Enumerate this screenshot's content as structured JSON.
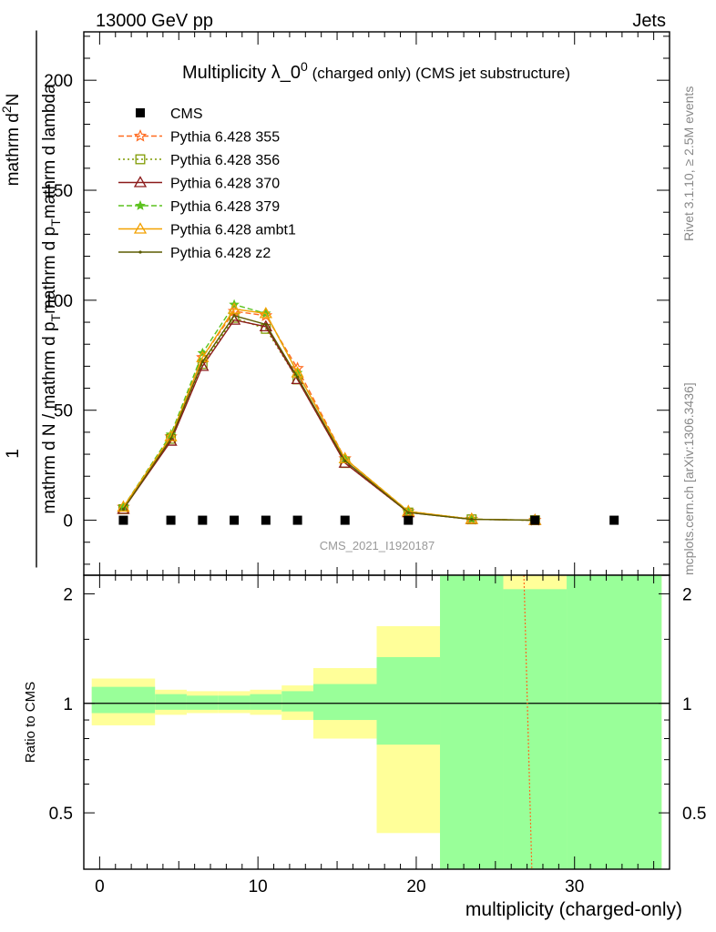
{
  "header": {
    "left": "13000 GeV pp",
    "right": "Jets"
  },
  "side_labels": {
    "rivet": "Rivet 3.1.10, ≥ 2.5M events",
    "mcplots": "mcplots.cern.ch [arXiv:1306.3436]"
  },
  "watermark": "CMS_2021_I1920187",
  "colors": {
    "cms": "#000000",
    "p355": "#ff6a1f",
    "p356": "#7f9a00",
    "p370": "#8b1a1a",
    "p379": "#5cc21e",
    "ambt1": "#f2a100",
    "z2": "#5b5b00",
    "band_yellow": "#ffff99",
    "band_green": "#99ff99"
  },
  "chart_data": [
    {
      "type": "line",
      "title_main": "Multiplicity λ_0",
      "title_sup": "0",
      "title_note": "(charged only) (CMS jet substructure)",
      "ylabel_main": "mathrm d N / mathrm d p",
      "ylabel_sub": "T",
      "ylabel_tail": "mathrm d p",
      "ylabel_tail_sub": "T",
      "ylabel_end": "mathrm d lambda",
      "ylabel_num": "mathrm d",
      "ylabel_num_sup": "2",
      "ylabel_num_end": "N",
      "ylabel_one": "1",
      "xlim": [
        -1,
        36
      ],
      "ylim": [
        -25,
        222
      ],
      "yticks": [
        0,
        50,
        100,
        150,
        200
      ],
      "yticklabels": [
        "0",
        "50",
        "100",
        "150",
        "200"
      ],
      "legend_position": "top-left",
      "x": [
        1.5,
        4.5,
        6.5,
        8.5,
        10.5,
        12.5,
        15.5,
        19.5,
        23.5,
        27.5
      ],
      "cms": {
        "name": "CMS",
        "x": [
          1.5,
          4.5,
          6.5,
          8.5,
          10.5,
          12.5,
          15.5,
          19.5,
          27.5,
          32.5
        ],
        "y": [
          0,
          0,
          0,
          0,
          0,
          0,
          0,
          0,
          0,
          0
        ]
      },
      "series": [
        {
          "key": "p355",
          "name": "Pythia 6.428 355",
          "marker": "star",
          "dash": "6,3",
          "y": [
            6,
            38,
            74,
            95,
            93,
            69,
            28,
            4,
            0.5,
            0
          ]
        },
        {
          "key": "p356",
          "name": "Pythia 6.428 356",
          "marker": "square",
          "dash": "2,3",
          "y": [
            5,
            37,
            71,
            92,
            87,
            64,
            26,
            3.5,
            0.4,
            0
          ]
        },
        {
          "key": "p370",
          "name": "Pythia 6.428 370",
          "marker": "triangle",
          "dash": "",
          "y": [
            5,
            36,
            70,
            91,
            88,
            64,
            26,
            3.5,
            0.4,
            0
          ]
        },
        {
          "key": "p379",
          "name": "Pythia 6.428 379",
          "marker": "star-small",
          "dash": "6,3",
          "y": [
            6,
            39,
            76,
            98,
            94,
            67,
            28,
            4,
            0.5,
            0
          ]
        },
        {
          "key": "ambt1",
          "name": "Pythia 6.428 ambt1",
          "marker": "triangle",
          "dash": "",
          "y": [
            6,
            38,
            74,
            96,
            94,
            67,
            28,
            4,
            0.5,
            0
          ]
        },
        {
          "key": "z2",
          "name": "Pythia 6.428 z2",
          "marker": "dot",
          "dash": "",
          "y": [
            5,
            37,
            72,
            93,
            89,
            65,
            27,
            3.5,
            0.4,
            0
          ]
        }
      ]
    },
    {
      "type": "area",
      "ylabel": "Ratio to CMS",
      "xlabel": "multiplicity (charged-only)",
      "xlim": [
        -1,
        36
      ],
      "ylim": [
        0.35,
        2.25
      ],
      "xticks": [
        0,
        10,
        20,
        30
      ],
      "xticklabels": [
        "0",
        "10",
        "20",
        "30"
      ],
      "yticks": [
        0.5,
        1,
        2
      ],
      "yticklabels": [
        "0.5",
        "1",
        "2"
      ],
      "reference_line": 1,
      "bins": [
        {
          "x0": -0.5,
          "x1": 3.5,
          "yellow": [
            0.87,
            1.17
          ],
          "green": [
            0.94,
            1.11
          ]
        },
        {
          "x0": 3.5,
          "x1": 5.5,
          "yellow": [
            0.93,
            1.09
          ],
          "green": [
            0.96,
            1.06
          ]
        },
        {
          "x0": 5.5,
          "x1": 7.5,
          "yellow": [
            0.94,
            1.08
          ],
          "green": [
            0.96,
            1.05
          ]
        },
        {
          "x0": 7.5,
          "x1": 9.5,
          "yellow": [
            0.94,
            1.08
          ],
          "green": [
            0.96,
            1.05
          ]
        },
        {
          "x0": 9.5,
          "x1": 11.5,
          "yellow": [
            0.93,
            1.09
          ],
          "green": [
            0.96,
            1.06
          ]
        },
        {
          "x0": 11.5,
          "x1": 13.5,
          "yellow": [
            0.9,
            1.12
          ],
          "green": [
            0.95,
            1.08
          ]
        },
        {
          "x0": 13.5,
          "x1": 17.5,
          "yellow": [
            0.8,
            1.25
          ],
          "green": [
            0.9,
            1.13
          ]
        },
        {
          "x0": 17.5,
          "x1": 21.5,
          "yellow": [
            0.44,
            1.63
          ],
          "green": [
            0.77,
            1.34
          ]
        },
        {
          "x0": 21.5,
          "x1": 25.5,
          "yellow": [
            0.35,
            2.25
          ],
          "green": [
            0.35,
            2.25
          ]
        },
        {
          "x0": 25.5,
          "x1": 29.5,
          "yellow": [
            0.35,
            2.25
          ],
          "green": [
            0.35,
            2.06
          ]
        },
        {
          "x0": 29.5,
          "x1": 35.5,
          "yellow": [
            0.35,
            2.25
          ],
          "green": [
            0.35,
            2.25
          ]
        }
      ],
      "ratio_line": {
        "key": "p356",
        "x": [
          26.8,
          27.3
        ],
        "y": [
          2.25,
          0.35
        ]
      }
    }
  ]
}
